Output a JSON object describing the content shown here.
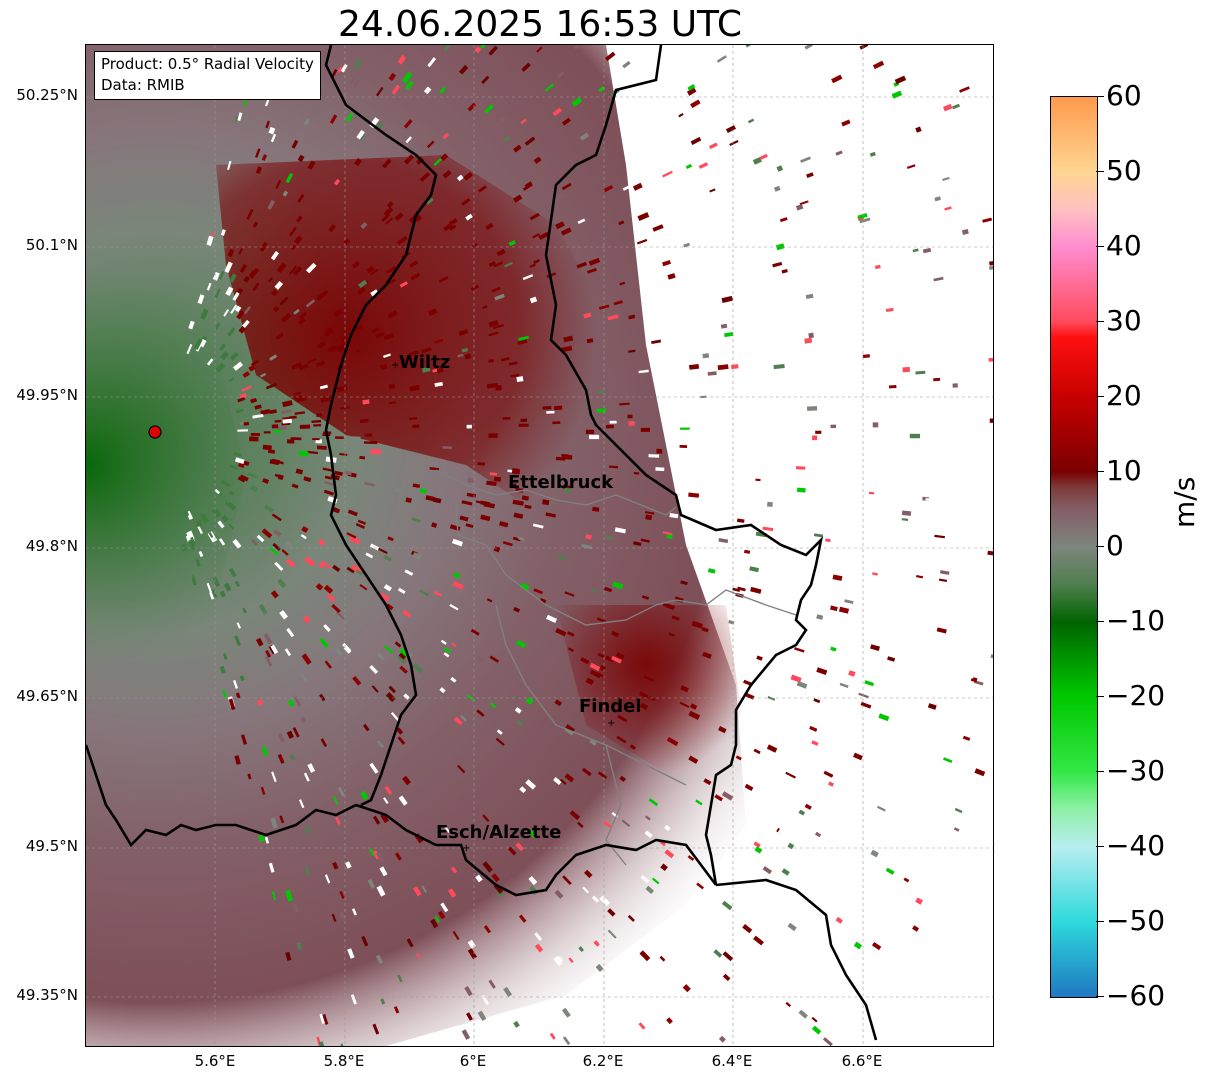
{
  "title": "24.06.2025 16:53 UTC",
  "info_box": {
    "product": "Product: 0.5° Radial Velocity",
    "data_source": "Data: RMIB"
  },
  "latitude_labels": [
    "50.25°N",
    "50.1°N",
    "49.95°N",
    "49.8°N",
    "49.65°N",
    "49.5°N",
    "49.35°N"
  ],
  "longitude_labels": [
    "5.6°E",
    "5.8°E",
    "6°E",
    "6.2°E",
    "6.4°E",
    "6.6°E"
  ],
  "cities": [
    "Wiltz",
    "Ettelbruck",
    "Findel",
    "Esch/Alzette"
  ],
  "colorbar": {
    "unit": "m/s",
    "min": -60,
    "max": 60,
    "tick_labels": [
      "60",
      "50",
      "40",
      "30",
      "20",
      "10",
      "0",
      "−10",
      "−20",
      "−30",
      "−40",
      "−50",
      "−60"
    ],
    "stops": [
      {
        "value": -60,
        "color": "#1f78c1"
      },
      {
        "value": -50,
        "color": "#2ed9dc"
      },
      {
        "value": -40,
        "color": "#b8eef0"
      },
      {
        "value": -35,
        "color": "#8ef0a8"
      },
      {
        "value": -30,
        "color": "#33e846"
      },
      {
        "value": -20,
        "color": "#00c800"
      },
      {
        "value": -10,
        "color": "#006400"
      },
      {
        "value": -5,
        "color": "#4f7f4f"
      },
      {
        "value": 0,
        "color": "#7e857d"
      },
      {
        "value": 5,
        "color": "#845e67"
      },
      {
        "value": 8,
        "color": "#7d3a3a"
      },
      {
        "value": 10,
        "color": "#7a0000"
      },
      {
        "value": 20,
        "color": "#c80000"
      },
      {
        "value": 28,
        "color": "#ff1010"
      },
      {
        "value": 30,
        "color": "#ff4a5c"
      },
      {
        "value": 40,
        "color": "#ff8dd0"
      },
      {
        "value": 45,
        "color": "#ffc0c0"
      },
      {
        "value": 50,
        "color": "#ffd591"
      },
      {
        "value": 60,
        "color": "#ff9a4e"
      }
    ]
  },
  "radar_site_marker_color": "#e00000",
  "border_color": "#000000",
  "admin_border_color": "#808080"
}
